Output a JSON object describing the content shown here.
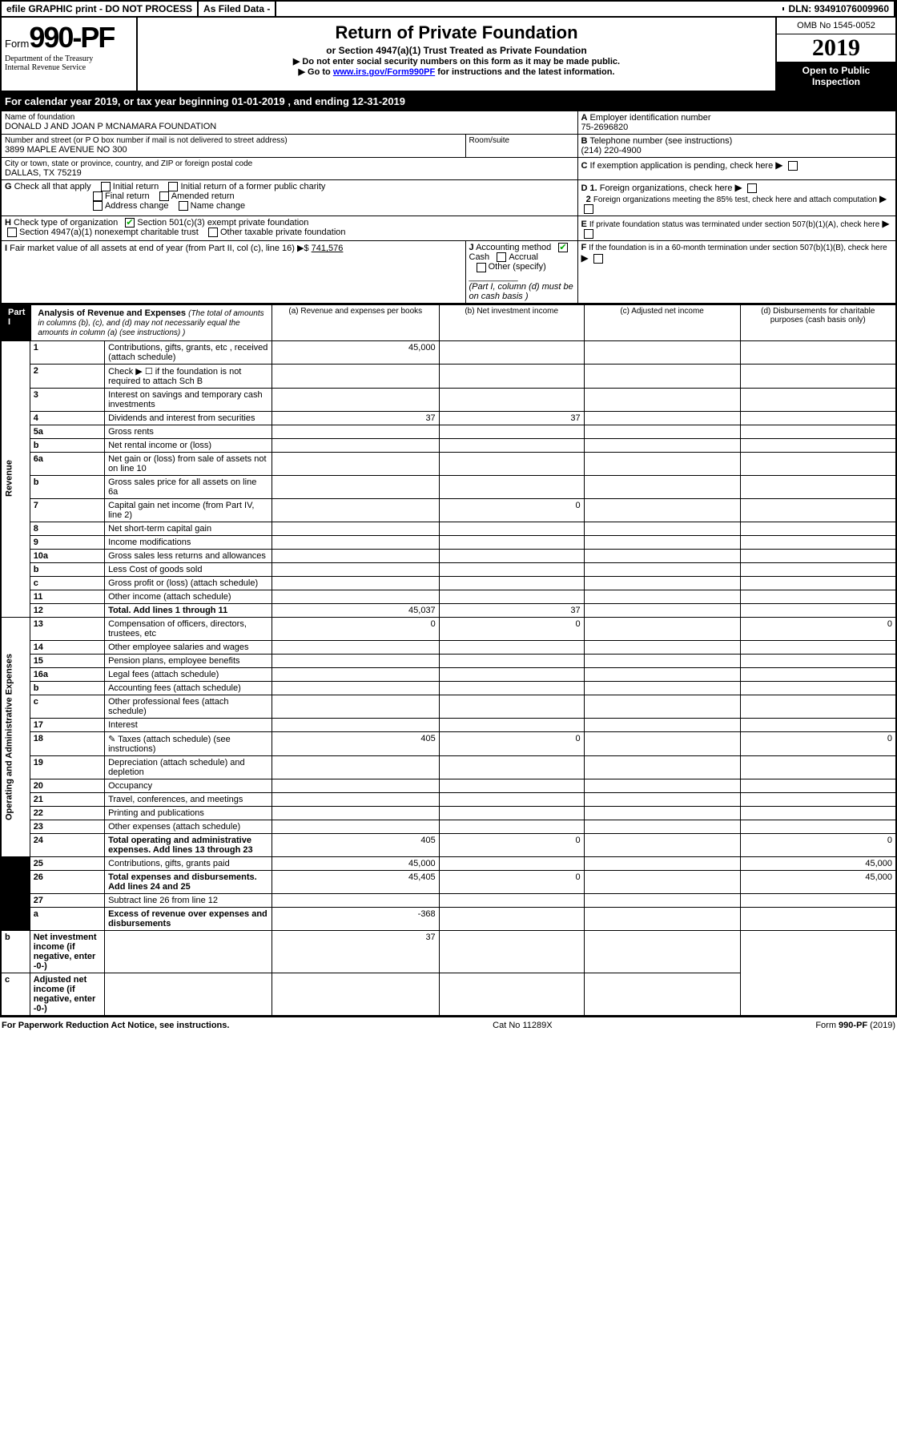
{
  "topbar": {
    "efile": "efile GRAPHIC print - DO NOT PROCESS",
    "asfiled": "As Filed Data -",
    "dln_lbl": "DLN:",
    "dln": "93491076009960"
  },
  "header": {
    "form_prefix": "Form",
    "form_num": "990-PF",
    "dept1": "Department of the Treasury",
    "dept2": "Internal Revenue Service",
    "title": "Return of Private Foundation",
    "subtitle": "or Section 4947(a)(1) Trust Treated as Private Foundation",
    "note1": "▶ Do not enter social security numbers on this form as it may be made public.",
    "note2_pre": "▶ Go to ",
    "note2_link": "www.irs.gov/Form990PF",
    "note2_post": " for instructions and the latest information.",
    "omb": "OMB No 1545-0052",
    "year": "2019",
    "open": "Open to Public Inspection"
  },
  "cal": {
    "pre": "For calendar year 2019, or tax year beginning ",
    "begin": "01-01-2019",
    "mid": " , and ending ",
    "end": "12-31-2019"
  },
  "ident": {
    "name_lbl": "Name of foundation",
    "name": "DONALD J AND JOAN P MCNAMARA FOUNDATION",
    "A_lbl": "A",
    "A_txt": "Employer identification number",
    "A_val": "75-2696820",
    "street_lbl": "Number and street (or P O  box number if mail is not delivered to street address)",
    "street": "3899 MAPLE AVENUE NO 300",
    "room_lbl": "Room/suite",
    "B_lbl": "B",
    "B_txt": "Telephone number (see instructions)",
    "B_val": "(214) 220-4900",
    "city_lbl": "City or town, state or province, country, and ZIP or foreign postal code",
    "city": "DALLAS, TX  75219",
    "C_lbl": "C",
    "C_txt": "If exemption application is pending, check here",
    "G_lbl": "G",
    "G_txt": "Check all that apply",
    "g1": "Initial return",
    "g2": "Initial return of a former public charity",
    "g3": "Final return",
    "g4": "Amended return",
    "g5": "Address change",
    "g6": "Name change",
    "D_lbl": "D 1.",
    "D_txt": "Foreign organizations, check here",
    "D2_lbl": "2",
    "D2_txt": "Foreign organizations meeting the 85% test, check here and attach computation",
    "H_lbl": "H",
    "H_txt": "Check type of organization",
    "h1": "Section 501(c)(3) exempt private foundation",
    "h2": "Section 4947(a)(1) nonexempt charitable trust",
    "h3": "Other taxable private foundation",
    "E_lbl": "E",
    "E_txt": "If private foundation status was terminated under section 507(b)(1)(A), check here",
    "I_lbl": "I",
    "I_txt": "Fair market value of all assets at end of year (from Part II, col  (c), line 16)",
    "I_val": "741,576",
    "J_lbl": "J",
    "J_txt": "Accounting method",
    "j1": "Cash",
    "j2": "Accrual",
    "j3": "Other (specify)",
    "j_note": "(Part I, column (d) must be on cash basis )",
    "F_lbl": "F",
    "F_txt": "If the foundation is in a 60-month termination under section 507(b)(1)(B), check here"
  },
  "part1": {
    "label": "Part I",
    "title": "Analysis of Revenue and Expenses",
    "title_note": "(The total of amounts in columns (b), (c), and (d) may not necessarily equal the amounts in column (a) (see instructions) )",
    "col_a": "(a)  Revenue and expenses per books",
    "col_b": "(b)  Net investment income",
    "col_c": "(c)  Adjusted net income",
    "col_d": "(d)  Disbursements for charitable purposes (cash basis only)",
    "rev_lbl": "Revenue",
    "exp_lbl": "Operating and Administrative Expenses"
  },
  "rows": [
    {
      "n": "1",
      "t": "Contributions, gifts, grants, etc , received (attach schedule)",
      "a": "45,000"
    },
    {
      "n": "2",
      "t": "Check ▶ ☐ if the foundation is not required to attach Sch  B"
    },
    {
      "n": "3",
      "t": "Interest on savings and temporary cash investments"
    },
    {
      "n": "4",
      "t": "Dividends and interest from securities",
      "a": "37",
      "b": "37"
    },
    {
      "n": "5a",
      "t": "Gross rents"
    },
    {
      "n": "b",
      "t": "Net rental income or (loss)"
    },
    {
      "n": "6a",
      "t": "Net gain or (loss) from sale of assets not on line 10"
    },
    {
      "n": "b",
      "t": "Gross sales price for all assets on line 6a"
    },
    {
      "n": "7",
      "t": "Capital gain net income (from Part IV, line 2)",
      "b": "0"
    },
    {
      "n": "8",
      "t": "Net short-term capital gain"
    },
    {
      "n": "9",
      "t": "Income modifications"
    },
    {
      "n": "10a",
      "t": "Gross sales less returns and allowances"
    },
    {
      "n": "b",
      "t": "Less  Cost of goods sold"
    },
    {
      "n": "c",
      "t": "Gross profit or (loss) (attach schedule)"
    },
    {
      "n": "11",
      "t": "Other income (attach schedule)"
    },
    {
      "n": "12",
      "t": "Total. Add lines 1 through 11",
      "bold": true,
      "a": "45,037",
      "b": "37"
    },
    {
      "n": "13",
      "t": "Compensation of officers, directors, trustees, etc",
      "a": "0",
      "b": "0",
      "d": "0"
    },
    {
      "n": "14",
      "t": "Other employee salaries and wages"
    },
    {
      "n": "15",
      "t": "Pension plans, employee benefits"
    },
    {
      "n": "16a",
      "t": "Legal fees (attach schedule)"
    },
    {
      "n": "b",
      "t": "Accounting fees (attach schedule)"
    },
    {
      "n": "c",
      "t": "Other professional fees (attach schedule)"
    },
    {
      "n": "17",
      "t": "Interest"
    },
    {
      "n": "18",
      "t": "Taxes (attach schedule) (see instructions)",
      "a": "405",
      "b": "0",
      "d": "0",
      "icon": "✎"
    },
    {
      "n": "19",
      "t": "Depreciation (attach schedule) and depletion"
    },
    {
      "n": "20",
      "t": "Occupancy"
    },
    {
      "n": "21",
      "t": "Travel, conferences, and meetings"
    },
    {
      "n": "22",
      "t": "Printing and publications"
    },
    {
      "n": "23",
      "t": "Other expenses (attach schedule)"
    },
    {
      "n": "24",
      "t": "Total operating and administrative expenses. Add lines 13 through 23",
      "bold": true,
      "a": "405",
      "b": "0",
      "d": "0"
    },
    {
      "n": "25",
      "t": "Contributions, gifts, grants paid",
      "a": "45,000",
      "d": "45,000"
    },
    {
      "n": "26",
      "t": "Total expenses and disbursements. Add lines 24 and 25",
      "bold": true,
      "a": "45,405",
      "b": "0",
      "d": "45,000"
    },
    {
      "n": "27",
      "t": "Subtract line 26 from line 12"
    },
    {
      "n": "a",
      "t": "Excess of revenue over expenses and disbursements",
      "bold": true,
      "a": "-368"
    },
    {
      "n": "b",
      "t": "Net investment income (if negative, enter -0-)",
      "bold": true,
      "b": "37"
    },
    {
      "n": "c",
      "t": "Adjusted net income (if negative, enter -0-)",
      "bold": true
    }
  ],
  "footer": {
    "left": "For Paperwork Reduction Act Notice, see instructions.",
    "mid": "Cat  No  11289X",
    "right": "Form 990-PF (2019)"
  }
}
